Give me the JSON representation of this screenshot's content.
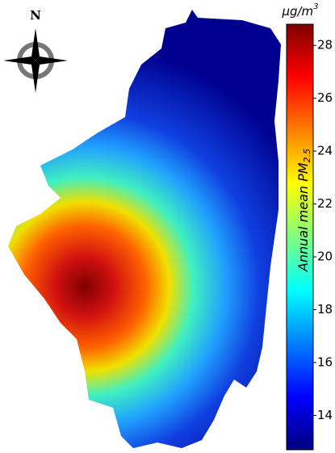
{
  "compass": {
    "label": "N"
  },
  "colorbar": {
    "unit": {
      "text": "μg/m",
      "superscript": "3"
    },
    "label": {
      "text": "Annual mean PM",
      "subscript": "2.5"
    },
    "lim": [
      12.7,
      28.8
    ],
    "ticks": [
      14,
      16,
      18,
      20,
      22,
      24,
      26,
      28
    ]
  }
}
